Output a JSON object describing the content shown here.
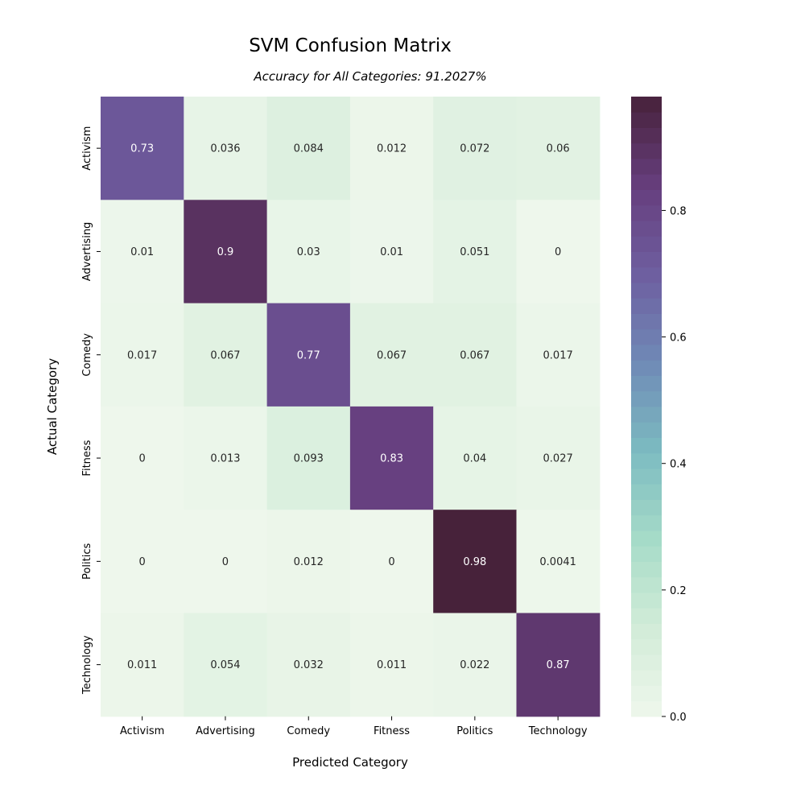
{
  "chart_data": {
    "type": "heatmap",
    "title": "SVM Confusion Matrix",
    "subtitle": "Accuracy for All Categories: 91.2027%",
    "xlabel": "Predicted Category",
    "ylabel": "Actual Category",
    "x_categories": [
      "Activism",
      "Advertising",
      "Comedy",
      "Fitness",
      "Politics",
      "Technology"
    ],
    "y_categories": [
      "Activism",
      "Advertising",
      "Comedy",
      "Fitness",
      "Politics",
      "Technology"
    ],
    "values": [
      [
        0.73,
        0.036,
        0.084,
        0.012,
        0.072,
        0.06
      ],
      [
        0.01,
        0.9,
        0.03,
        0.01,
        0.051,
        0
      ],
      [
        0.017,
        0.067,
        0.77,
        0.067,
        0.067,
        0.017
      ],
      [
        0,
        0.013,
        0.093,
        0.83,
        0.04,
        0.027
      ],
      [
        0,
        0,
        0.012,
        0,
        0.98,
        0.0041
      ],
      [
        0.011,
        0.054,
        0.032,
        0.011,
        0.022,
        0.87
      ]
    ],
    "value_labels": [
      [
        "0.73",
        "0.036",
        "0.084",
        "0.012",
        "0.072",
        "0.06"
      ],
      [
        "0.01",
        "0.9",
        "0.03",
        "0.01",
        "0.051",
        "0"
      ],
      [
        "0.017",
        "0.067",
        "0.77",
        "0.067",
        "0.067",
        "0.017"
      ],
      [
        "0",
        "0.013",
        "0.093",
        "0.83",
        "0.04",
        "0.027"
      ],
      [
        "0",
        "0",
        "0.012",
        "0",
        "0.98",
        "0.0041"
      ],
      [
        "0.011",
        "0.054",
        "0.032",
        "0.011",
        "0.022",
        "0.87"
      ]
    ],
    "colorbar": {
      "range": [
        0,
        0.98
      ],
      "ticks": [
        0.0,
        0.2,
        0.4,
        0.6,
        0.8
      ],
      "tick_labels": [
        "0.0",
        "0.2",
        "0.4",
        "0.6",
        "0.8"
      ]
    },
    "colormap": [
      "#eef7ec",
      "#d2ecd8",
      "#a6dbc8",
      "#7cbbc1",
      "#6f8ab6",
      "#6e5ea0",
      "#663e7d",
      "#47223a"
    ]
  }
}
